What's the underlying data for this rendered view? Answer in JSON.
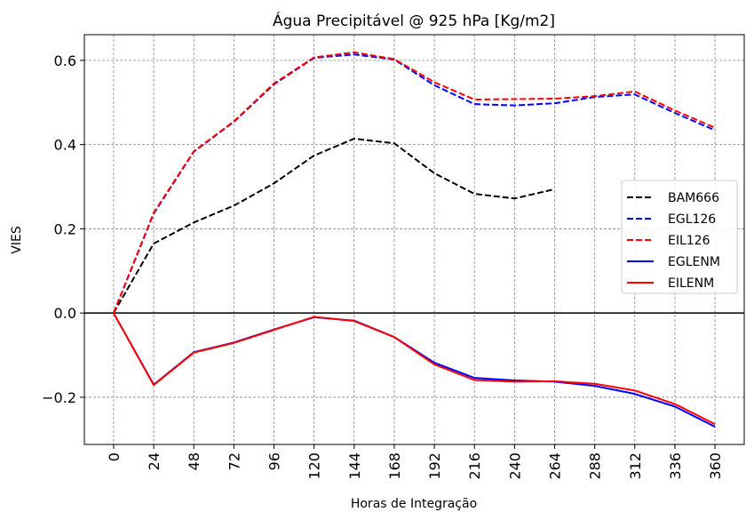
{
  "chart_data": {
    "type": "line",
    "title": "Água Precipitável @ 925 hPa [Kg/m2]",
    "xlabel": "Horas de Integração",
    "ylabel": "VIES",
    "xlim": [
      -17.5,
      377.5
    ],
    "ylim": [
      -0.312,
      0.661
    ],
    "grid": true,
    "legend_position": "center-right",
    "x_ticks": [
      0,
      24,
      48,
      72,
      96,
      120,
      144,
      168,
      192,
      216,
      240,
      264,
      288,
      312,
      336,
      360
    ],
    "x_tick_labels": [
      "0",
      "24",
      "48",
      "72",
      "96",
      "120",
      "144",
      "168",
      "192",
      "216",
      "240",
      "264",
      "288",
      "312",
      "336",
      "360"
    ],
    "y_ticks": [
      -0.2,
      0.0,
      0.2,
      0.4,
      0.6
    ],
    "y_tick_labels": [
      "−0.2",
      "0.0",
      "0.2",
      "0.4",
      "0.6"
    ],
    "series": [
      {
        "name": "BAM666",
        "color": "#000000",
        "dash": true,
        "x": [
          0,
          24,
          48,
          72,
          96,
          120,
          144,
          168,
          192,
          216,
          240,
          264
        ],
        "values": [
          0.0,
          0.165,
          0.215,
          0.255,
          0.308,
          0.374,
          0.414,
          0.403,
          0.332,
          0.283,
          0.272,
          0.294
        ]
      },
      {
        "name": "EGL126",
        "color": "#0000ff",
        "dash": true,
        "x": [
          0,
          24,
          48,
          72,
          96,
          120,
          144,
          168,
          192,
          216,
          240,
          264,
          288,
          312,
          336,
          360
        ],
        "values": [
          0.0,
          0.236,
          0.383,
          0.454,
          0.543,
          0.606,
          0.614,
          0.602,
          0.541,
          0.496,
          0.493,
          0.498,
          0.513,
          0.519,
          0.475,
          0.434
        ]
      },
      {
        "name": "EIL126",
        "color": "#ff0000",
        "dash": true,
        "x": [
          0,
          24,
          48,
          72,
          96,
          120,
          144,
          168,
          192,
          216,
          240,
          264,
          288,
          312,
          336,
          360
        ],
        "values": [
          0.0,
          0.238,
          0.384,
          0.455,
          0.545,
          0.607,
          0.619,
          0.603,
          0.548,
          0.507,
          0.508,
          0.509,
          0.515,
          0.526,
          0.481,
          0.44
        ]
      },
      {
        "name": "EGLENM",
        "color": "#0000ff",
        "dash": false,
        "x": [
          0,
          24,
          48,
          72,
          96,
          120,
          144,
          168,
          192,
          216,
          240,
          264,
          288,
          312,
          336,
          360
        ],
        "values": [
          0.0,
          -0.17,
          -0.093,
          -0.07,
          -0.039,
          -0.01,
          -0.018,
          -0.057,
          -0.118,
          -0.154,
          -0.16,
          -0.163,
          -0.173,
          -0.192,
          -0.222,
          -0.27
        ]
      },
      {
        "name": "EILENM",
        "color": "#ff0000",
        "dash": false,
        "x": [
          0,
          24,
          48,
          72,
          96,
          120,
          144,
          168,
          192,
          216,
          240,
          264,
          288,
          312,
          336,
          360
        ],
        "values": [
          0.0,
          -0.171,
          -0.094,
          -0.071,
          -0.04,
          -0.009,
          -0.019,
          -0.057,
          -0.122,
          -0.159,
          -0.163,
          -0.162,
          -0.168,
          -0.184,
          -0.216,
          -0.264
        ]
      }
    ]
  }
}
